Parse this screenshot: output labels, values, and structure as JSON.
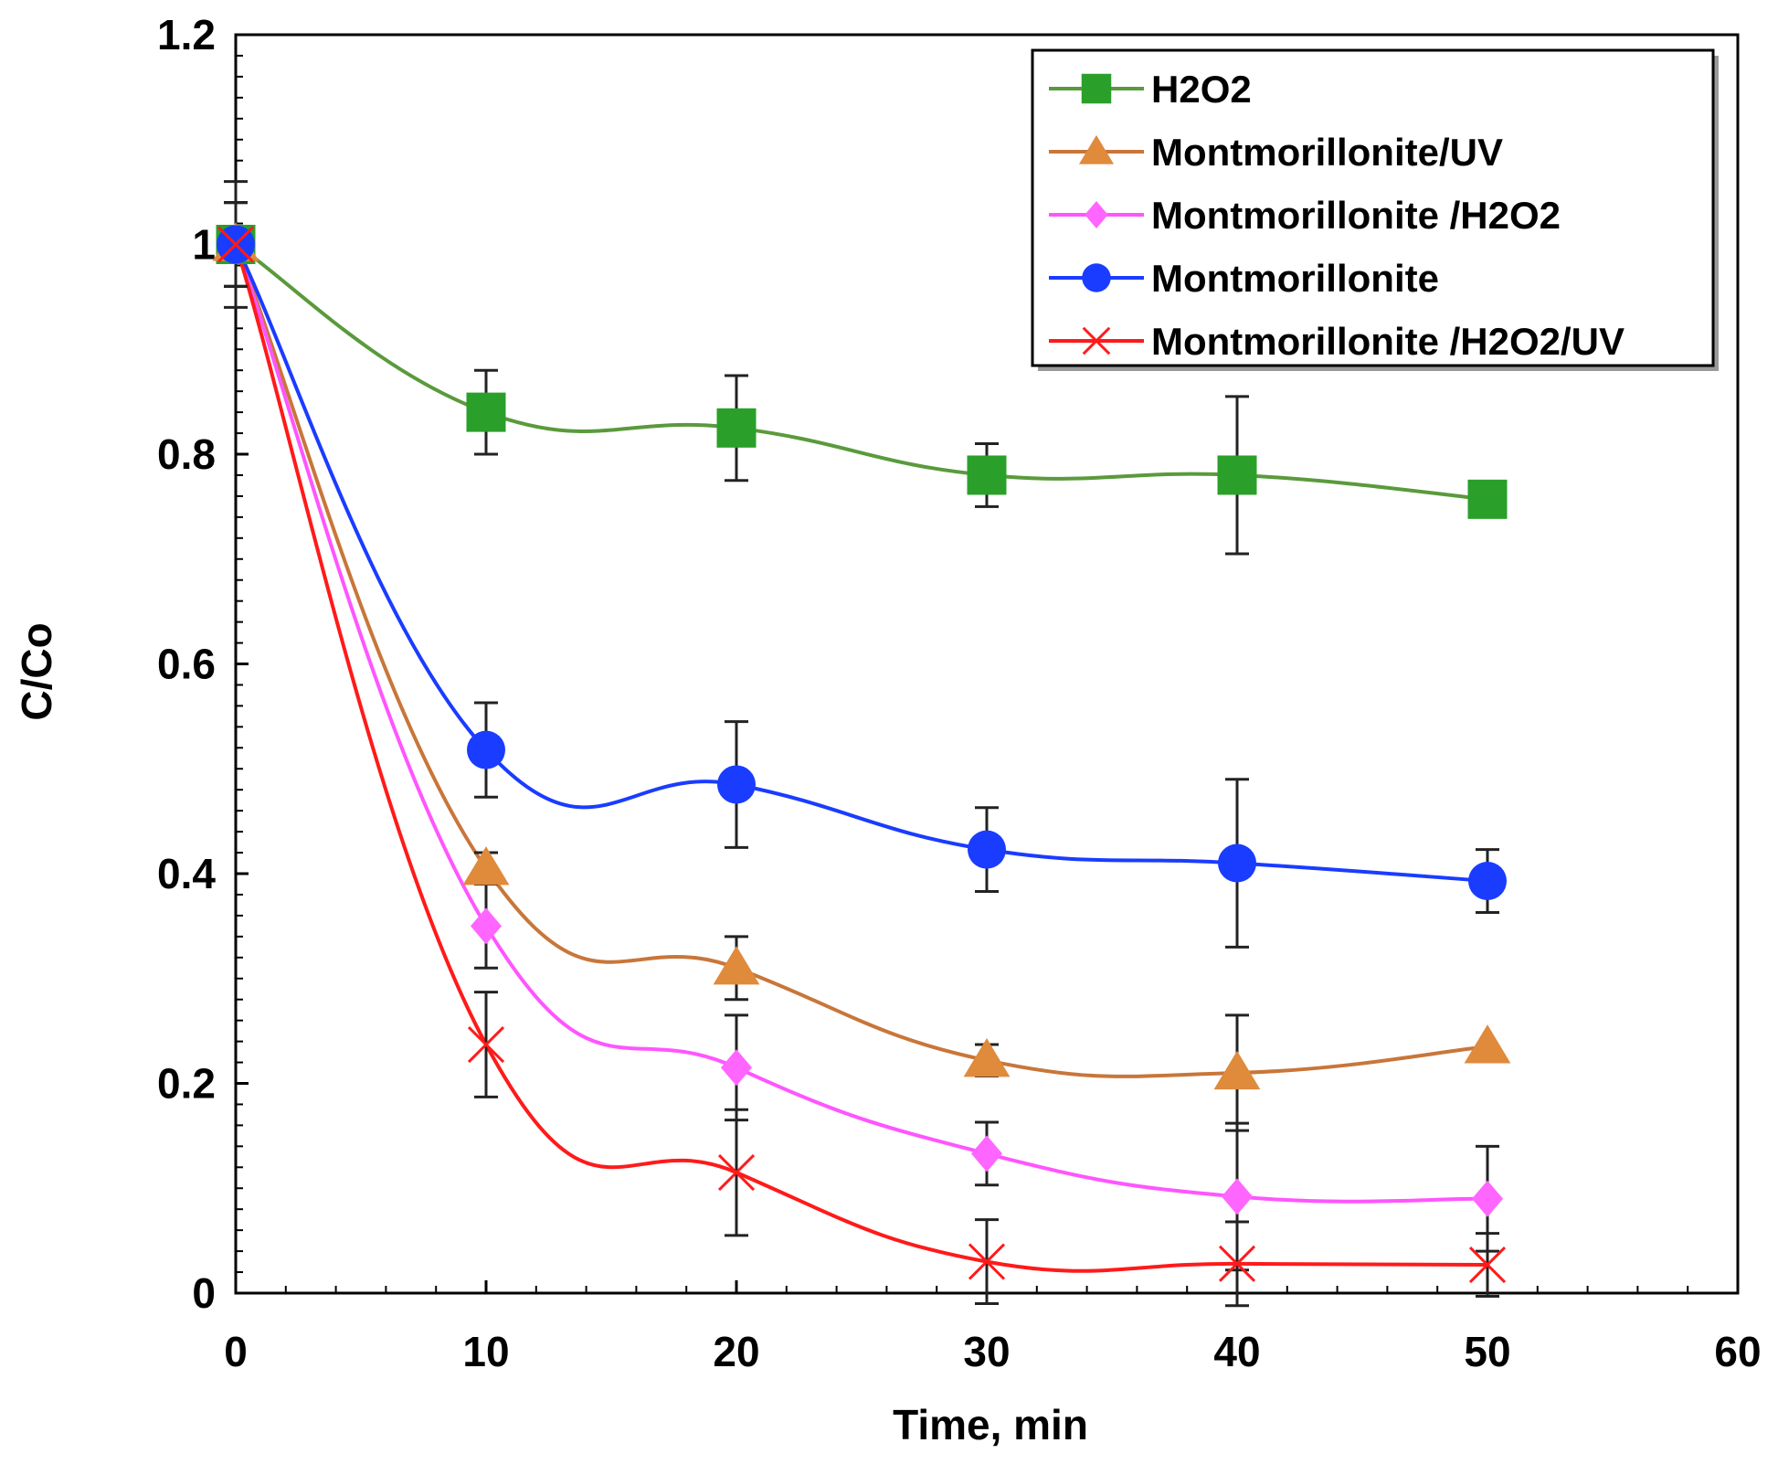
{
  "chart_data": {
    "type": "line",
    "title": "",
    "xlabel": "Time, min",
    "ylabel": "C/Co",
    "xlim": [
      0,
      60
    ],
    "ylim": [
      0,
      1.2
    ],
    "x_ticks": [
      0,
      10,
      20,
      30,
      40,
      50,
      60
    ],
    "x_tick_labels": [
      "0",
      "10",
      "20",
      "30",
      "40",
      "50",
      "60"
    ],
    "y_ticks": [
      0,
      0.2,
      0.4,
      0.6,
      0.8,
      1,
      1.2
    ],
    "y_tick_labels": [
      "0",
      "0.2",
      "0.4",
      "0.6",
      "0.8",
      "1",
      "1.2"
    ],
    "grid": false,
    "legend_position": "top-right",
    "x": [
      0,
      10,
      20,
      30,
      40,
      50
    ],
    "series": [
      {
        "name": "H2O2",
        "color": "#5a9a3c",
        "marker_color": "#2aa02a",
        "marker": "square",
        "values": [
          1.0,
          0.84,
          0.825,
          0.78,
          0.78,
          0.757
        ],
        "errors": [
          0.06,
          0.04,
          0.05,
          0.03,
          0.075,
          0
        ]
      },
      {
        "name": "Montmorillonite/UV",
        "color": "#c8763a",
        "marker_color": "#e08a3c",
        "marker": "triangle",
        "values": [
          1.0,
          0.405,
          0.31,
          0.222,
          0.21,
          0.235
        ],
        "errors": [
          0.04,
          0.015,
          0.03,
          0.015,
          0.055,
          0
        ]
      },
      {
        "name": "Montmorillonite /H2O2",
        "color": "#ff55ff",
        "marker_color": "#ff66ff",
        "marker": "diamond",
        "values": [
          1.0,
          0.35,
          0.215,
          0.133,
          0.092,
          0.09
        ],
        "errors": [
          0.04,
          0.04,
          0.05,
          0.03,
          0.07,
          0.05
        ]
      },
      {
        "name": "Montmorillonite",
        "color": "#1a3cff",
        "marker_color": "#1a3cff",
        "marker": "circle",
        "values": [
          1.0,
          0.518,
          0.485,
          0.423,
          0.41,
          0.393
        ],
        "errors": [
          0.04,
          0.045,
          0.06,
          0.04,
          0.08,
          0.03
        ]
      },
      {
        "name": "Montmorillonite /H2O2/UV",
        "color": "#ff1a1a",
        "marker_color": "#ff1a1a",
        "marker": "x",
        "values": [
          1.0,
          0.237,
          0.115,
          0.03,
          0.028,
          0.027
        ],
        "errors": [
          0.04,
          0.05,
          0.06,
          0.04,
          0.04,
          0.03
        ]
      }
    ]
  }
}
